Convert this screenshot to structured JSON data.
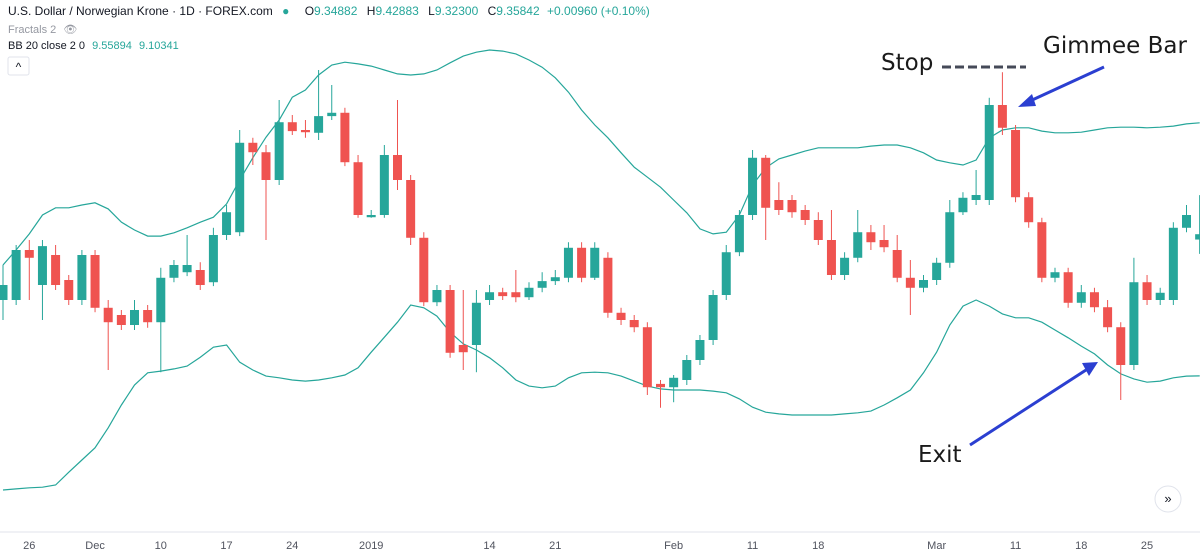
{
  "header": {
    "symbol": "U.S. Dollar / Norwegian Krone · 1D · FOREX.com",
    "ohlc": [
      {
        "key": "O",
        "value": "9.34882"
      },
      {
        "key": "H",
        "value": "9.42883"
      },
      {
        "key": "L",
        "value": "9.32300"
      },
      {
        "key": "C",
        "value": "9.35842"
      }
    ],
    "change": "+0.00960 (+0.10%)",
    "fractals": "Fractals 2",
    "bb_label": "BB 20 close 2 0",
    "bb_values": [
      "9.55894",
      "9.10341"
    ]
  },
  "chart_data": {
    "type": "candlestick",
    "categories": [
      null,
      null,
      "26",
      null,
      null,
      null,
      null,
      "Dec",
      null,
      null,
      null,
      null,
      "10",
      null,
      null,
      null,
      null,
      "17",
      null,
      null,
      null,
      null,
      "24",
      null,
      null,
      null,
      null,
      null,
      "2019",
      null,
      null,
      null,
      null,
      null,
      null,
      null,
      null,
      "14",
      null,
      null,
      null,
      null,
      "21",
      null,
      null,
      null,
      null,
      null,
      null,
      null,
      null,
      "Feb",
      null,
      null,
      null,
      null,
      null,
      "11",
      null,
      null,
      null,
      null,
      "18",
      null,
      null,
      null,
      null,
      null,
      null,
      null,
      null,
      "Mar",
      null,
      null,
      null,
      null,
      null,
      "11",
      null,
      null,
      null,
      null,
      "18",
      null,
      null,
      null,
      null,
      "25",
      null,
      null,
      null,
      null
    ],
    "open": [
      9.24,
      9.24,
      9.33,
      9.267,
      9.321,
      9.276,
      9.24,
      9.321,
      9.226,
      9.213,
      9.195,
      9.222,
      9.2,
      9.28,
      9.29,
      9.294,
      9.272,
      9.357,
      9.362,
      9.523,
      9.506,
      9.456,
      9.56,
      9.546,
      9.541,
      9.571,
      9.577,
      9.488,
      9.389,
      9.393,
      9.501,
      9.456,
      9.352,
      9.236,
      9.258,
      9.159,
      9.159,
      9.24,
      9.254,
      9.254,
      9.245,
      9.262,
      9.274,
      9.28,
      9.334,
      9.28,
      9.316,
      9.217,
      9.204,
      9.191,
      9.089,
      9.083,
      9.096,
      9.132,
      9.168,
      9.249,
      9.326,
      9.393,
      9.496,
      9.42,
      9.42,
      9.402,
      9.384,
      9.348,
      9.285,
      9.316,
      9.362,
      9.348,
      9.33,
      9.28,
      9.262,
      9.276,
      9.307,
      9.398,
      9.42,
      9.42,
      9.591,
      9.546,
      9.425,
      9.38,
      9.28,
      9.29,
      9.235,
      9.254,
      9.227,
      9.191,
      9.123,
      9.272,
      9.24,
      9.24,
      9.37,
      9.34882
    ],
    "high": [
      9.303,
      9.339,
      9.348,
      9.348,
      9.339,
      9.285,
      9.33,
      9.33,
      9.24,
      9.222,
      9.24,
      9.231,
      9.298,
      9.312,
      9.357,
      9.308,
      9.37,
      9.411,
      9.546,
      9.532,
      9.519,
      9.6,
      9.573,
      9.564,
      9.654,
      9.627,
      9.586,
      9.501,
      9.402,
      9.519,
      9.6,
      9.465,
      9.362,
      9.267,
      9.267,
      9.258,
      9.258,
      9.267,
      9.262,
      9.294,
      9.272,
      9.29,
      9.294,
      9.344,
      9.344,
      9.344,
      9.326,
      9.226,
      9.213,
      9.2,
      9.096,
      9.105,
      9.141,
      9.177,
      9.258,
      9.339,
      9.402,
      9.51,
      9.501,
      9.452,
      9.429,
      9.411,
      9.398,
      9.402,
      9.326,
      9.402,
      9.375,
      9.375,
      9.357,
      9.312,
      9.285,
      9.316,
      9.42,
      9.434,
      9.474,
      9.604,
      9.65,
      9.555,
      9.434,
      9.388,
      9.298,
      9.298,
      9.267,
      9.262,
      9.24,
      9.2,
      9.316,
      9.285,
      9.262,
      9.38,
      9.411,
      9.42883
    ],
    "low": [
      9.204,
      9.231,
      9.24,
      9.204,
      9.258,
      9.231,
      9.231,
      9.218,
      9.114,
      9.186,
      9.186,
      9.19,
      9.11,
      9.272,
      9.283,
      9.258,
      9.265,
      9.348,
      9.355,
      9.483,
      9.348,
      9.447,
      9.537,
      9.532,
      9.528,
      9.564,
      9.481,
      9.388,
      9.388,
      9.388,
      9.438,
      9.339,
      9.229,
      9.229,
      9.136,
      9.114,
      9.11,
      9.231,
      9.24,
      9.236,
      9.24,
      9.254,
      9.267,
      9.272,
      9.272,
      9.276,
      9.208,
      9.195,
      9.182,
      9.069,
      9.046,
      9.056,
      9.087,
      9.123,
      9.159,
      9.24,
      9.319,
      9.384,
      9.348,
      9.393,
      9.388,
      9.375,
      9.339,
      9.276,
      9.276,
      9.308,
      9.33,
      9.326,
      9.272,
      9.213,
      9.254,
      9.267,
      9.298,
      9.393,
      9.411,
      9.411,
      9.537,
      9.416,
      9.37,
      9.272,
      9.272,
      9.226,
      9.226,
      9.218,
      9.182,
      9.06,
      9.114,
      9.231,
      9.231,
      9.231,
      9.362,
      9.323
    ],
    "close": [
      9.267,
      9.33,
      9.316,
      9.337,
      9.267,
      9.24,
      9.321,
      9.226,
      9.2,
      9.195,
      9.222,
      9.2,
      9.28,
      9.303,
      9.303,
      9.267,
      9.357,
      9.398,
      9.523,
      9.506,
      9.456,
      9.56,
      9.544,
      9.542,
      9.571,
      9.577,
      9.488,
      9.393,
      9.393,
      9.501,
      9.456,
      9.352,
      9.236,
      9.258,
      9.145,
      9.146,
      9.235,
      9.254,
      9.247,
      9.245,
      9.262,
      9.274,
      9.281,
      9.334,
      9.28,
      9.334,
      9.217,
      9.204,
      9.191,
      9.083,
      9.083,
      9.1,
      9.132,
      9.168,
      9.249,
      9.326,
      9.393,
      9.496,
      9.406,
      9.402,
      9.398,
      9.384,
      9.348,
      9.285,
      9.316,
      9.362,
      9.344,
      9.335,
      9.28,
      9.262,
      9.276,
      9.307,
      9.398,
      9.424,
      9.429,
      9.591,
      9.55,
      9.425,
      9.38,
      9.28,
      9.29,
      9.235,
      9.254,
      9.227,
      9.191,
      9.123,
      9.272,
      9.24,
      9.253,
      9.37,
      9.393,
      9.35842
    ],
    "up_color": "#26a69a",
    "down_color": "#ef5350",
    "bands": {
      "color": "#26a69a",
      "upper": [
        9.303,
        9.33,
        9.359,
        9.393,
        9.406,
        9.406,
        9.411,
        9.415,
        9.404,
        9.38,
        9.366,
        9.355,
        9.355,
        9.361,
        9.37,
        9.38,
        9.389,
        9.413,
        9.456,
        9.496,
        9.533,
        9.564,
        9.605,
        9.618,
        9.645,
        9.663,
        9.668,
        9.665,
        9.661,
        9.654,
        9.647,
        9.645,
        9.647,
        9.654,
        9.667,
        9.679,
        9.686,
        9.69,
        9.688,
        9.683,
        9.672,
        9.659,
        9.64,
        9.614,
        9.582,
        9.555,
        9.532,
        9.505,
        9.479,
        9.461,
        9.443,
        9.42,
        9.397,
        9.368,
        9.359,
        9.362,
        9.393,
        9.447,
        9.478,
        9.494,
        9.501,
        9.508,
        9.514,
        9.514,
        9.514,
        9.514,
        9.517,
        9.519,
        9.519,
        9.514,
        9.505,
        9.492,
        9.487,
        9.483,
        9.492,
        9.532,
        9.546,
        9.55,
        9.55,
        9.544,
        9.541,
        9.541,
        9.542,
        9.546,
        9.55,
        9.551,
        9.551,
        9.55,
        9.551,
        9.553,
        9.557,
        9.55894
      ],
      "lower": [
        8.898,
        8.9,
        8.902,
        8.903,
        8.907,
        8.93,
        8.952,
        8.974,
        9.01,
        9.051,
        9.087,
        9.109,
        9.112,
        9.116,
        9.121,
        9.137,
        9.155,
        9.159,
        9.128,
        9.114,
        9.103,
        9.1,
        9.096,
        9.094,
        9.096,
        9.1,
        9.105,
        9.118,
        9.146,
        9.173,
        9.2,
        9.231,
        9.226,
        9.211,
        9.182,
        9.161,
        9.15,
        9.136,
        9.118,
        9.096,
        9.085,
        9.082,
        9.085,
        9.1,
        9.109,
        9.11,
        9.109,
        9.103,
        9.094,
        9.085,
        9.08,
        9.078,
        9.078,
        9.078,
        9.076,
        9.073,
        9.062,
        9.047,
        9.038,
        9.035,
        9.033,
        9.033,
        9.033,
        9.033,
        9.035,
        9.037,
        9.04,
        9.051,
        9.064,
        9.078,
        9.109,
        9.146,
        9.195,
        9.229,
        9.24,
        9.229,
        9.215,
        9.208,
        9.208,
        9.2,
        9.186,
        9.172,
        9.157,
        9.143,
        9.123,
        9.107,
        9.098,
        9.092,
        9.094,
        9.1,
        9.103,
        9.10341
      ]
    },
    "ylim": [
      8.826,
      9.78
    ],
    "annotations": [
      "Stop",
      "Gimmee Bar",
      "Exit"
    ]
  }
}
